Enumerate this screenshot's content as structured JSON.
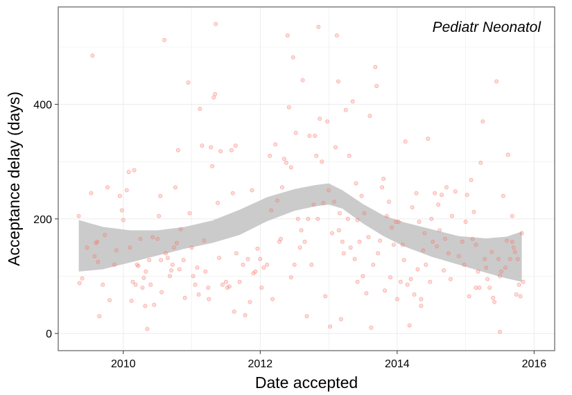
{
  "chart_data": {
    "type": "scatter",
    "title": "",
    "annotation": "Pediatr Neonatol",
    "xlabel": "Date accepted",
    "ylabel": "Acceptance delay (days)",
    "xlim": [
      2009.05,
      2016.3
    ],
    "ylim": [
      -30,
      570
    ],
    "x_ticks": [
      2010,
      2012,
      2014,
      2016
    ],
    "y_ticks": [
      0,
      200,
      400
    ],
    "grid": true,
    "colors": {
      "points": "#f8766d",
      "band": "#c8c8c8",
      "grid": "#ebebeb",
      "border": "#7f7f7f"
    },
    "points": [
      [
        2009.35,
        205
      ],
      [
        2009.36,
        88
      ],
      [
        2009.4,
        96
      ],
      [
        2009.47,
        150
      ],
      [
        2009.53,
        245
      ],
      [
        2009.55,
        485
      ],
      [
        2009.58,
        135
      ],
      [
        2009.6,
        158
      ],
      [
        2009.62,
        160
      ],
      [
        2009.63,
        125
      ],
      [
        2009.65,
        30
      ],
      [
        2009.7,
        85
      ],
      [
        2009.73,
        172
      ],
      [
        2009.77,
        255
      ],
      [
        2009.8,
        58
      ],
      [
        2009.87,
        120
      ],
      [
        2009.9,
        145
      ],
      [
        2009.95,
        240
      ],
      [
        2009.98,
        215
      ],
      [
        2010.0,
        198
      ],
      [
        2010.05,
        250
      ],
      [
        2010.08,
        282
      ],
      [
        2010.1,
        150
      ],
      [
        2010.12,
        57
      ],
      [
        2010.14,
        90
      ],
      [
        2010.16,
        285
      ],
      [
        2010.18,
        85
      ],
      [
        2010.2,
        120
      ],
      [
        2010.22,
        118
      ],
      [
        2010.25,
        165
      ],
      [
        2010.28,
        80
      ],
      [
        2010.3,
        97
      ],
      [
        2010.32,
        48
      ],
      [
        2010.33,
        108
      ],
      [
        2010.35,
        8
      ],
      [
        2010.38,
        128
      ],
      [
        2010.4,
        85
      ],
      [
        2010.43,
        168
      ],
      [
        2010.45,
        50
      ],
      [
        2010.5,
        165
      ],
      [
        2010.52,
        205
      ],
      [
        2010.54,
        240
      ],
      [
        2010.56,
        72
      ],
      [
        2010.6,
        512
      ],
      [
        2010.62,
        140
      ],
      [
        2010.65,
        132
      ],
      [
        2010.68,
        100
      ],
      [
        2010.72,
        120
      ],
      [
        2010.74,
        150
      ],
      [
        2010.76,
        255
      ],
      [
        2010.78,
        158
      ],
      [
        2010.8,
        320
      ],
      [
        2010.82,
        112
      ],
      [
        2010.84,
        182
      ],
      [
        2010.88,
        128
      ],
      [
        2010.9,
        62
      ],
      [
        2010.95,
        438
      ],
      [
        2010.97,
        210
      ],
      [
        2011.0,
        150
      ],
      [
        2011.02,
        100
      ],
      [
        2011.05,
        85
      ],
      [
        2011.1,
        68
      ],
      [
        2011.12,
        392
      ],
      [
        2011.15,
        328
      ],
      [
        2011.18,
        162
      ],
      [
        2011.2,
        108
      ],
      [
        2011.24,
        80
      ],
      [
        2011.25,
        60
      ],
      [
        2011.28,
        325
      ],
      [
        2011.3,
        292
      ],
      [
        2011.32,
        412
      ],
      [
        2011.34,
        418
      ],
      [
        2011.35,
        540
      ],
      [
        2011.38,
        228
      ],
      [
        2011.4,
        132
      ],
      [
        2011.42,
        318
      ],
      [
        2011.45,
        85
      ],
      [
        2011.5,
        90
      ],
      [
        2011.52,
        80
      ],
      [
        2011.55,
        82
      ],
      [
        2011.58,
        320
      ],
      [
        2011.6,
        245
      ],
      [
        2011.62,
        38
      ],
      [
        2011.64,
        328
      ],
      [
        2011.7,
        90
      ],
      [
        2011.75,
        120
      ],
      [
        2011.78,
        32
      ],
      [
        2011.82,
        130
      ],
      [
        2011.85,
        55
      ],
      [
        2011.88,
        250
      ],
      [
        2011.9,
        105
      ],
      [
        2011.93,
        108
      ],
      [
        2011.96,
        148
      ],
      [
        2012.0,
        130
      ],
      [
        2012.02,
        80
      ],
      [
        2012.05,
        115
      ],
      [
        2012.1,
        120
      ],
      [
        2012.14,
        310
      ],
      [
        2012.16,
        215
      ],
      [
        2012.18,
        60
      ],
      [
        2012.22,
        330
      ],
      [
        2012.25,
        232
      ],
      [
        2012.28,
        160
      ],
      [
        2012.3,
        165
      ],
      [
        2012.32,
        255
      ],
      [
        2012.35,
        305
      ],
      [
        2012.38,
        298
      ],
      [
        2012.4,
        520
      ],
      [
        2012.42,
        395
      ],
      [
        2012.45,
        290
      ],
      [
        2012.48,
        482
      ],
      [
        2012.5,
        120
      ],
      [
        2012.52,
        350
      ],
      [
        2012.55,
        200
      ],
      [
        2012.58,
        150
      ],
      [
        2012.6,
        180
      ],
      [
        2012.62,
        442
      ],
      [
        2012.65,
        160
      ],
      [
        2012.68,
        30
      ],
      [
        2012.7,
        200
      ],
      [
        2012.72,
        345
      ],
      [
        2012.75,
        120
      ],
      [
        2012.78,
        225
      ],
      [
        2012.8,
        345
      ],
      [
        2012.82,
        310
      ],
      [
        2012.84,
        200
      ],
      [
        2012.85,
        535
      ],
      [
        2012.87,
        375
      ],
      [
        2012.9,
        300
      ],
      [
        2012.92,
        228
      ],
      [
        2012.95,
        65
      ],
      [
        2012.98,
        370
      ],
      [
        2013.0,
        250
      ],
      [
        2013.02,
        12
      ],
      [
        2013.05,
        175
      ],
      [
        2013.08,
        230
      ],
      [
        2013.1,
        325
      ],
      [
        2013.12,
        520
      ],
      [
        2013.14,
        440
      ],
      [
        2013.16,
        210
      ],
      [
        2013.18,
        25
      ],
      [
        2013.2,
        160
      ],
      [
        2013.22,
        140
      ],
      [
        2013.25,
        390
      ],
      [
        2013.28,
        200
      ],
      [
        2013.3,
        310
      ],
      [
        2013.32,
        150
      ],
      [
        2013.35,
        405
      ],
      [
        2013.38,
        130
      ],
      [
        2013.4,
        262
      ],
      [
        2013.42,
        198
      ],
      [
        2013.45,
        160
      ],
      [
        2013.48,
        240
      ],
      [
        2013.5,
        100
      ],
      [
        2013.52,
        210
      ],
      [
        2013.55,
        70
      ],
      [
        2013.58,
        168
      ],
      [
        2013.6,
        380
      ],
      [
        2013.62,
        10
      ],
      [
        2013.65,
        120
      ],
      [
        2013.68,
        465
      ],
      [
        2013.7,
        432
      ],
      [
        2013.72,
        140
      ],
      [
        2013.75,
        162
      ],
      [
        2013.78,
        255
      ],
      [
        2013.8,
        270
      ],
      [
        2013.82,
        75
      ],
      [
        2013.85,
        205
      ],
      [
        2013.88,
        230
      ],
      [
        2013.9,
        98
      ],
      [
        2013.92,
        185
      ],
      [
        2013.95,
        155
      ],
      [
        2013.98,
        195
      ],
      [
        2014.0,
        60
      ],
      [
        2014.02,
        195
      ],
      [
        2014.05,
        90
      ],
      [
        2014.08,
        155
      ],
      [
        2014.1,
        128
      ],
      [
        2014.12,
        335
      ],
      [
        2014.15,
        85
      ],
      [
        2014.18,
        14
      ],
      [
        2014.2,
        95
      ],
      [
        2014.22,
        220
      ],
      [
        2014.25,
        68
      ],
      [
        2014.28,
        245
      ],
      [
        2014.3,
        112
      ],
      [
        2014.32,
        195
      ],
      [
        2014.35,
        48
      ],
      [
        2014.38,
        145
      ],
      [
        2014.4,
        175
      ],
      [
        2014.42,
        120
      ],
      [
        2014.45,
        340
      ],
      [
        2014.48,
        90
      ],
      [
        2014.5,
        200
      ],
      [
        2014.52,
        160
      ],
      [
        2014.55,
        245
      ],
      [
        2014.58,
        152
      ],
      [
        2014.6,
        225
      ],
      [
        2014.62,
        180
      ],
      [
        2014.65,
        242
      ],
      [
        2014.7,
        165
      ],
      [
        2014.72,
        255
      ],
      [
        2014.75,
        140
      ],
      [
        2014.78,
        95
      ],
      [
        2014.8,
        205
      ],
      [
        2014.85,
        248
      ],
      [
        2014.9,
        135
      ],
      [
        2014.95,
        160
      ],
      [
        2014.98,
        120
      ],
      [
        2015.0,
        195
      ],
      [
        2015.02,
        242
      ],
      [
        2015.05,
        65
      ],
      [
        2015.08,
        268
      ],
      [
        2015.1,
        165
      ],
      [
        2015.12,
        212
      ],
      [
        2015.15,
        155
      ],
      [
        2015.18,
        108
      ],
      [
        2015.2,
        80
      ],
      [
        2015.22,
        298
      ],
      [
        2015.25,
        370
      ],
      [
        2015.28,
        130
      ],
      [
        2015.3,
        115
      ],
      [
        2015.32,
        95
      ],
      [
        2015.35,
        80
      ],
      [
        2015.38,
        142
      ],
      [
        2015.4,
        62
      ],
      [
        2015.42,
        55
      ],
      [
        2015.45,
        440
      ],
      [
        2015.48,
        130
      ],
      [
        2015.5,
        100
      ],
      [
        2015.52,
        108
      ],
      [
        2015.55,
        240
      ],
      [
        2015.58,
        115
      ],
      [
        2015.6,
        162
      ],
      [
        2015.62,
        312
      ],
      [
        2015.65,
        130
      ],
      [
        2015.68,
        205
      ],
      [
        2015.7,
        150
      ],
      [
        2015.72,
        142
      ],
      [
        2015.74,
        68
      ],
      [
        2015.76,
        130
      ],
      [
        2015.78,
        85
      ],
      [
        2015.8,
        65
      ],
      [
        2015.82,
        175
      ],
      [
        2015.84,
        90
      ],
      [
        2015.5,
        3
      ],
      [
        2015.68,
        160
      ],
      [
        2010.55,
        128
      ],
      [
        2010.7,
        110
      ],
      [
        2011.08,
        115
      ],
      [
        2011.65,
        140
      ],
      [
        2012.45,
        98
      ],
      [
        2013.15,
        180
      ],
      [
        2013.42,
        90
      ],
      [
        2014.35,
        60
      ],
      [
        2014.68,
        110
      ],
      [
        2015.15,
        80
      ]
    ],
    "smooth": {
      "x": [
        2009.35,
        2009.7,
        2010.1,
        2010.5,
        2010.9,
        2011.3,
        2011.7,
        2012.1,
        2012.5,
        2012.8,
        2013.0,
        2013.2,
        2013.5,
        2013.8,
        2014.1,
        2014.5,
        2014.9,
        2015.3,
        2015.6,
        2015.82
      ],
      "upper": [
        198,
        186,
        180,
        180,
        186,
        197,
        216,
        238,
        252,
        259,
        262,
        250,
        226,
        206,
        194,
        182,
        170,
        166,
        169,
        178
      ],
      "lower": [
        108,
        112,
        124,
        136,
        148,
        158,
        172,
        196,
        214,
        222,
        225,
        218,
        192,
        170,
        152,
        134,
        120,
        106,
        96,
        90
      ]
    }
  }
}
